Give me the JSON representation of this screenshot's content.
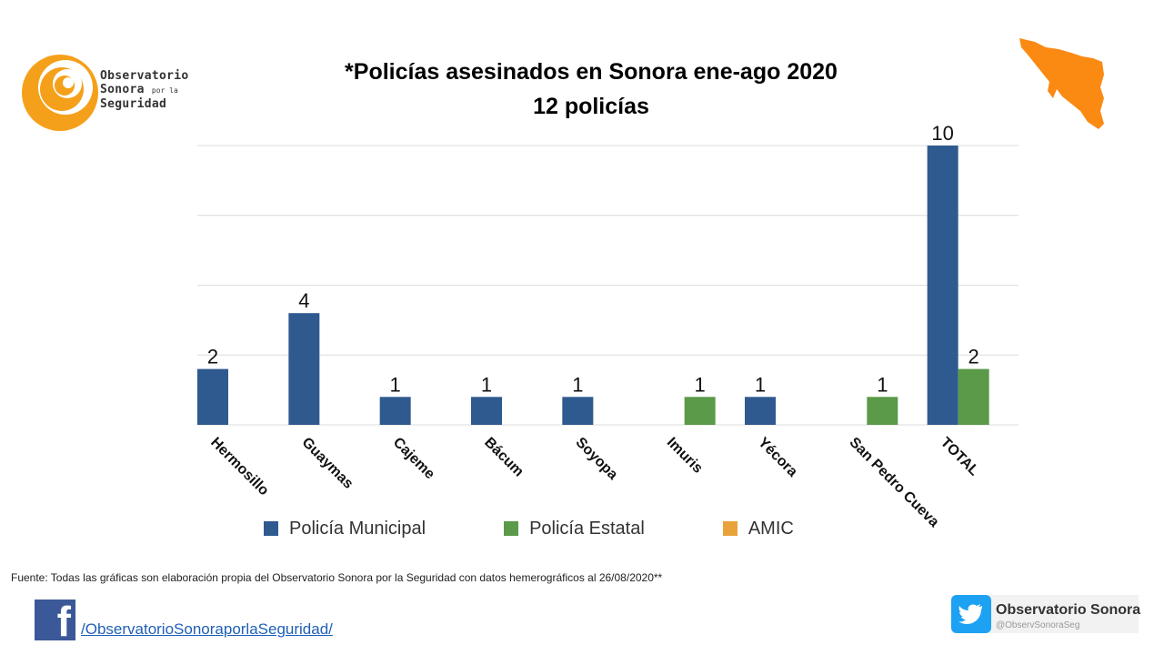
{
  "logo": {
    "line1": "Observatorio",
    "line2": "Sonora",
    "line2_small": "por la",
    "line3": "Seguridad"
  },
  "title_line1": "*Policías asesinados en Sonora ene-ago 2020",
  "title_line2": "12 policías",
  "colors": {
    "municipal": "#2f5a8f",
    "estatal": "#5a9a48",
    "amic": "#e8a33a",
    "logo_orange": "#f5a01a",
    "map_orange": "#fb8a13",
    "grid": "#dcdcdc"
  },
  "chart_data": {
    "type": "bar",
    "title": "*Policías asesinados en Sonora ene-ago 2020",
    "subtitle": "12 policías",
    "categories": [
      "Hermosillo",
      "Guaymas",
      "Cajeme",
      "Bácum",
      "Soyopa",
      "Imuris",
      "Yécora",
      "San Pedro Cueva",
      "TOTAL"
    ],
    "series": [
      {
        "name": "Policía Municipal",
        "values": [
          2,
          4,
          1,
          1,
          1,
          0,
          1,
          0,
          10
        ]
      },
      {
        "name": "Policía Estatal",
        "values": [
          0,
          0,
          0,
          0,
          0,
          1,
          0,
          1,
          2
        ]
      },
      {
        "name": "AMIC",
        "values": [
          0,
          0,
          0,
          0,
          0,
          0,
          0,
          0,
          0
        ]
      }
    ],
    "ylim": [
      0,
      10
    ],
    "grid": true,
    "legend": "bottom",
    "data_labels": true
  },
  "source": "Fuente: Todas las gráficas son elaboración propia del Observatorio Sonora por la Seguridad con datos hemerográficos al 26/08/2020**",
  "facebook": {
    "link": "/ObservatorioSonoraporlaSeguridad/",
    "icon": "facebook-icon"
  },
  "twitter": {
    "name": "Observatorio Sonora",
    "handle": "@ObservSonoraSeg",
    "icon": "twitter-bird-icon"
  }
}
